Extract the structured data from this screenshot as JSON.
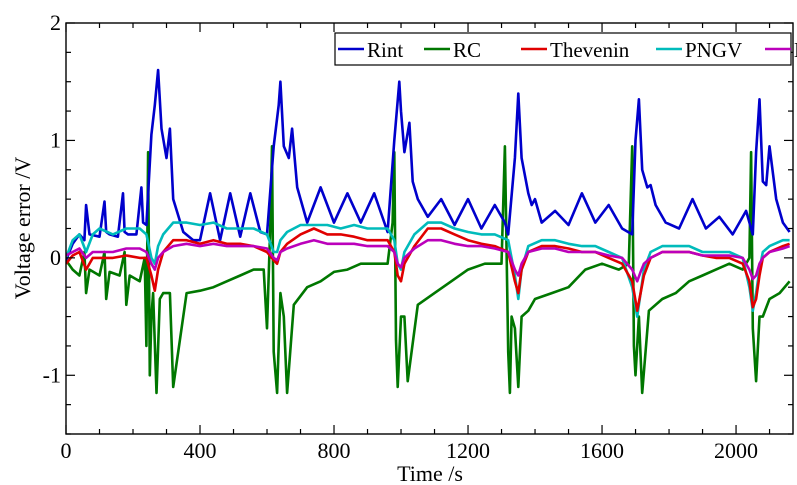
{
  "chart_data": {
    "type": "line",
    "title": "",
    "xlabel": "Time /s",
    "ylabel": "Voltage error /V",
    "xlim": [
      0,
      2170
    ],
    "ylim": [
      -1.5,
      2
    ],
    "xticks": [
      0,
      400,
      800,
      1200,
      1600,
      2000
    ],
    "yticks": [
      -1,
      0,
      1,
      2
    ],
    "xtick_labels": [
      "0",
      "400",
      "800",
      "1200",
      "1600",
      "2000"
    ],
    "ytick_labels": [
      "-1",
      "0",
      "1",
      "2"
    ],
    "grid": false,
    "legend": {
      "placement": "top-right",
      "orientation": "horizontal"
    },
    "series": [
      {
        "name": "Rint",
        "color": "#0000cc",
        "x": [
          0,
          20,
          40,
          55,
          60,
          70,
          100,
          115,
          120,
          130,
          155,
          170,
          175,
          185,
          210,
          225,
          230,
          240,
          255,
          265,
          275,
          285,
          300,
          310,
          320,
          350,
          380,
          400,
          430,
          460,
          490,
          520,
          550,
          580,
          600,
          620,
          635,
          640,
          650,
          665,
          675,
          690,
          720,
          760,
          800,
          840,
          880,
          920,
          960,
          980,
          995,
          1000,
          1010,
          1025,
          1035,
          1050,
          1080,
          1120,
          1160,
          1200,
          1240,
          1280,
          1310,
          1320,
          1340,
          1350,
          1360,
          1380,
          1390,
          1400,
          1420,
          1460,
          1500,
          1540,
          1580,
          1620,
          1660,
          1690,
          1700,
          1710,
          1720,
          1735,
          1745,
          1760,
          1790,
          1830,
          1870,
          1910,
          1950,
          1990,
          2030,
          2050,
          2060,
          2070,
          2080,
          2090,
          2100,
          2120,
          2140,
          2160
        ],
        "y": [
          -0.02,
          0.12,
          0.2,
          0.15,
          0.45,
          0.2,
          0.18,
          0.48,
          0.22,
          0.2,
          0.18,
          0.55,
          0.22,
          0.2,
          0.2,
          0.6,
          0.3,
          0.28,
          1.05,
          1.3,
          1.6,
          1.1,
          0.85,
          1.1,
          0.5,
          0.22,
          0.15,
          0.15,
          0.55,
          0.15,
          0.55,
          0.18,
          0.55,
          0.22,
          0.2,
          0.95,
          1.3,
          1.5,
          0.95,
          0.85,
          1.1,
          0.6,
          0.3,
          0.6,
          0.3,
          0.55,
          0.3,
          0.55,
          0.22,
          1.0,
          1.5,
          1.25,
          0.9,
          1.15,
          0.65,
          0.5,
          0.35,
          0.5,
          0.28,
          0.5,
          0.25,
          0.45,
          0.3,
          0.2,
          0.85,
          1.4,
          0.85,
          0.55,
          0.45,
          0.5,
          0.3,
          0.4,
          0.28,
          0.55,
          0.3,
          0.45,
          0.25,
          0.2,
          1.0,
          1.35,
          0.75,
          0.6,
          0.62,
          0.45,
          0.3,
          0.25,
          0.5,
          0.25,
          0.35,
          0.2,
          0.4,
          0.2,
          0.9,
          1.35,
          0.65,
          0.62,
          0.95,
          0.5,
          0.3,
          0.22
        ]
      },
      {
        "name": "RC",
        "color": "#007700",
        "x": [
          0,
          20,
          40,
          55,
          60,
          70,
          100,
          115,
          120,
          130,
          160,
          175,
          180,
          190,
          220,
          235,
          240,
          245,
          250,
          255,
          260,
          270,
          280,
          290,
          310,
          320,
          360,
          400,
          440,
          480,
          520,
          560,
          590,
          600,
          610,
          615,
          620,
          630,
          640,
          650,
          660,
          680,
          720,
          760,
          800,
          840,
          880,
          920,
          960,
          975,
          980,
          985,
          990,
          1000,
          1010,
          1020,
          1050,
          1100,
          1150,
          1200,
          1250,
          1300,
          1310,
          1320,
          1325,
          1330,
          1340,
          1350,
          1360,
          1380,
          1400,
          1450,
          1500,
          1550,
          1600,
          1650,
          1680,
          1690,
          1695,
          1700,
          1710,
          1720,
          1740,
          1780,
          1820,
          1860,
          1900,
          1940,
          1980,
          2020,
          2040,
          2045,
          2050,
          2060,
          2070,
          2080,
          2100,
          2130,
          2160
        ],
        "y": [
          -0.02,
          -0.1,
          -0.15,
          0.05,
          -0.3,
          -0.1,
          -0.15,
          0.05,
          -0.35,
          -0.12,
          -0.15,
          0.05,
          -0.4,
          -0.15,
          -0.2,
          0.0,
          -0.75,
          0.9,
          -1.0,
          -0.5,
          -0.3,
          -1.15,
          -0.35,
          -0.3,
          -0.3,
          -1.1,
          -0.3,
          -0.28,
          -0.25,
          -0.2,
          -0.15,
          -0.1,
          -0.1,
          -0.6,
          0.3,
          0.95,
          -0.8,
          -1.15,
          -0.3,
          -0.5,
          -1.15,
          -0.4,
          -0.25,
          -0.2,
          -0.12,
          -0.1,
          -0.05,
          -0.05,
          -0.05,
          0.3,
          0.9,
          -0.7,
          -1.1,
          -0.5,
          -0.5,
          -1.05,
          -0.4,
          -0.3,
          -0.2,
          -0.1,
          -0.05,
          -0.05,
          0.95,
          -0.8,
          -1.15,
          -0.5,
          -0.6,
          -1.1,
          -0.5,
          -0.45,
          -0.35,
          -0.3,
          -0.25,
          -0.1,
          -0.05,
          -0.1,
          -0.05,
          0.95,
          -0.75,
          -1.0,
          -0.5,
          -1.15,
          -0.45,
          -0.35,
          -0.3,
          -0.2,
          -0.15,
          -0.1,
          -0.05,
          -0.1,
          0.0,
          0.9,
          -0.6,
          -1.05,
          -0.5,
          -0.5,
          -0.35,
          -0.3,
          -0.2
        ]
      },
      {
        "name": "Thevenin",
        "color": "#e00000",
        "x": [
          0,
          20,
          40,
          60,
          80,
          100,
          140,
          180,
          220,
          240,
          255,
          265,
          275,
          290,
          320,
          360,
          400,
          440,
          480,
          520,
          560,
          600,
          620,
          630,
          640,
          660,
          700,
          740,
          780,
          820,
          860,
          900,
          960,
          980,
          990,
          1000,
          1010,
          1040,
          1080,
          1120,
          1160,
          1200,
          1240,
          1280,
          1320,
          1340,
          1350,
          1360,
          1380,
          1420,
          1460,
          1500,
          1540,
          1580,
          1620,
          1660,
          1690,
          1705,
          1715,
          1725,
          1745,
          1780,
          1820,
          1860,
          1900,
          1940,
          1980,
          2020,
          2040,
          2050,
          2060,
          2070,
          2080,
          2100,
          2140,
          2160
        ],
        "y": [
          -0.05,
          0.02,
          0.05,
          -0.1,
          0.0,
          0.0,
          0.0,
          0.02,
          0.0,
          0.0,
          -0.15,
          -0.28,
          -0.1,
          0.05,
          0.15,
          0.15,
          0.12,
          0.15,
          0.12,
          0.12,
          0.1,
          0.05,
          -0.02,
          -0.05,
          0.05,
          0.12,
          0.2,
          0.25,
          0.2,
          0.2,
          0.18,
          0.15,
          0.15,
          0.05,
          -0.15,
          -0.2,
          -0.05,
          0.1,
          0.25,
          0.25,
          0.2,
          0.15,
          0.12,
          0.1,
          0.05,
          -0.2,
          -0.3,
          -0.1,
          0.05,
          0.1,
          0.1,
          0.08,
          0.05,
          0.05,
          0.0,
          -0.05,
          -0.2,
          -0.45,
          -0.3,
          -0.15,
          0.0,
          0.05,
          0.05,
          0.05,
          0.02,
          0.0,
          0.0,
          -0.05,
          -0.2,
          -0.42,
          -0.35,
          -0.15,
          0.0,
          0.05,
          0.1,
          0.12
        ]
      },
      {
        "name": "PNGV",
        "color": "#00bbbb",
        "x": [
          0,
          20,
          40,
          60,
          80,
          100,
          140,
          180,
          220,
          240,
          255,
          265,
          275,
          290,
          320,
          360,
          400,
          440,
          480,
          520,
          560,
          600,
          620,
          630,
          640,
          660,
          700,
          740,
          780,
          820,
          860,
          900,
          960,
          980,
          990,
          1000,
          1010,
          1040,
          1080,
          1120,
          1160,
          1200,
          1240,
          1280,
          1320,
          1340,
          1350,
          1360,
          1380,
          1420,
          1460,
          1500,
          1540,
          1580,
          1620,
          1660,
          1690,
          1705,
          1715,
          1725,
          1745,
          1780,
          1820,
          1860,
          1900,
          1940,
          1980,
          2020,
          2040,
          2050,
          2060,
          2070,
          2080,
          2100,
          2140,
          2160
        ],
        "y": [
          0.0,
          0.15,
          0.2,
          0.05,
          0.2,
          0.25,
          0.2,
          0.25,
          0.25,
          0.2,
          0.0,
          -0.05,
          0.1,
          0.2,
          0.3,
          0.3,
          0.28,
          0.3,
          0.25,
          0.25,
          0.25,
          0.2,
          0.05,
          0.05,
          0.15,
          0.22,
          0.28,
          0.28,
          0.28,
          0.25,
          0.28,
          0.25,
          0.25,
          0.15,
          -0.05,
          -0.1,
          0.05,
          0.2,
          0.3,
          0.3,
          0.25,
          0.22,
          0.2,
          0.2,
          0.15,
          -0.15,
          -0.35,
          -0.1,
          0.1,
          0.15,
          0.15,
          0.12,
          0.1,
          0.1,
          0.05,
          0.0,
          -0.25,
          -0.5,
          -0.3,
          -0.1,
          0.05,
          0.1,
          0.1,
          0.1,
          0.05,
          0.05,
          0.05,
          0.0,
          -0.25,
          -0.45,
          -0.3,
          -0.1,
          0.05,
          0.1,
          0.15,
          0.15
        ]
      },
      {
        "name": "DP",
        "color": "#bb00bb",
        "x": [
          0,
          20,
          40,
          60,
          80,
          100,
          140,
          180,
          220,
          240,
          255,
          265,
          275,
          290,
          320,
          360,
          400,
          440,
          480,
          520,
          560,
          600,
          620,
          630,
          640,
          660,
          700,
          740,
          780,
          820,
          860,
          900,
          960,
          980,
          990,
          1000,
          1010,
          1040,
          1080,
          1120,
          1160,
          1200,
          1240,
          1280,
          1320,
          1340,
          1350,
          1360,
          1380,
          1420,
          1460,
          1500,
          1540,
          1580,
          1620,
          1660,
          1690,
          1705,
          1715,
          1725,
          1745,
          1780,
          1820,
          1860,
          1900,
          1940,
          1980,
          2020,
          2040,
          2050,
          2060,
          2070,
          2080,
          2100,
          2140,
          2160
        ],
        "y": [
          0.02,
          0.05,
          0.08,
          0.0,
          0.05,
          0.05,
          0.05,
          0.08,
          0.08,
          0.05,
          -0.05,
          -0.1,
          0.0,
          0.05,
          0.1,
          0.12,
          0.1,
          0.12,
          0.1,
          0.1,
          0.1,
          0.08,
          0.0,
          -0.02,
          0.05,
          0.08,
          0.12,
          0.15,
          0.12,
          0.12,
          0.12,
          0.1,
          0.1,
          0.05,
          -0.05,
          -0.08,
          0.0,
          0.08,
          0.15,
          0.15,
          0.12,
          0.1,
          0.1,
          0.08,
          0.05,
          -0.1,
          -0.15,
          -0.05,
          0.05,
          0.08,
          0.08,
          0.05,
          0.05,
          0.05,
          0.02,
          0.0,
          -0.1,
          -0.2,
          -0.12,
          -0.05,
          0.0,
          0.05,
          0.05,
          0.05,
          0.02,
          0.02,
          0.02,
          0.0,
          -0.1,
          -0.18,
          -0.15,
          -0.05,
          0.0,
          0.05,
          0.08,
          0.1
        ]
      }
    ]
  }
}
